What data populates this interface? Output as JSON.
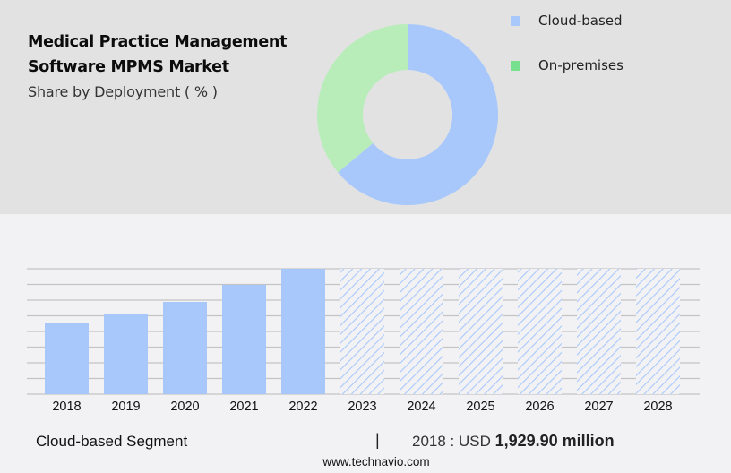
{
  "header": {
    "title_line1": "Medical Practice Management",
    "title_line2": "Software MPMS Market",
    "subtitle": "Share by Deployment ( % )"
  },
  "legend": {
    "items": [
      {
        "label": "Cloud-based",
        "color": "#a8c8fc"
      },
      {
        "label": "On-premises",
        "color": "#77e08f"
      }
    ]
  },
  "footer": {
    "segment_label": "Cloud-based Segment",
    "separator": "|",
    "value_prefix": "2018 : USD ",
    "value_bold": "1,929.90 million",
    "source": "www.technavio.com"
  },
  "colors": {
    "cloud": "#a8c8fc",
    "on_premises_donut": "#b8edba",
    "on_premises_legend": "#77e08f",
    "grid": "#c4c4c4",
    "top_bg": "#e2e2e2",
    "bottom_bg": "#f2f2f4"
  },
  "chart_data": [
    {
      "type": "pie",
      "subtype": "donut",
      "title": "Medical Practice Management Software MPMS Market - Share by Deployment ( % )",
      "labels": [
        "Cloud-based",
        "On-premises"
      ],
      "values": [
        64,
        36
      ],
      "colors": [
        "#a8c8fc",
        "#b8edba"
      ],
      "legend_position": "right"
    },
    {
      "type": "bar",
      "title": "Cloud-based Segment",
      "categories": [
        "2018",
        "2019",
        "2020",
        "2021",
        "2022",
        "2023",
        "2024",
        "2025",
        "2026",
        "2027",
        "2028"
      ],
      "values": [
        1929.9,
        2147,
        2485,
        2943,
        3377,
        null,
        null,
        null,
        null,
        null,
        null
      ],
      "forecast_years": [
        "2023",
        "2024",
        "2025",
        "2026",
        "2027",
        "2028"
      ],
      "forecast_style": "hatched, full height, values not shown",
      "unit": "USD million",
      "annotation": "2018 : USD 1,929.90 million",
      "xlabel": "",
      "ylabel": "",
      "y_axis_labels_visible": false,
      "grid": true,
      "gridlines": 9
    }
  ]
}
